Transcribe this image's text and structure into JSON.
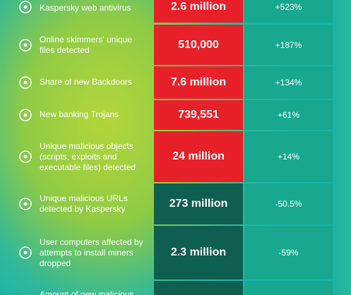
{
  "rows": [
    {
      "label": "Kaspersky web antivirus",
      "value": "2.6 million",
      "change": "+523%"
    },
    {
      "label": "Online skimmers' unique files detected",
      "value": "510,000",
      "change": "+187%"
    },
    {
      "label": "Share of new Backdoors",
      "value": "7.6 million",
      "change": "+134%"
    },
    {
      "label": "New banking Trojans",
      "value": "739,551",
      "change": "+61%"
    },
    {
      "label": "Unique malicious objects (scripts, exploits and executable files) detected",
      "value": "24 million",
      "change": "+14%"
    },
    {
      "label": "Unique malicious URLs detected by Kaspersky",
      "value": "273 million",
      "change": "-50.5%"
    },
    {
      "label": "User computers affected by attempts to install miners dropped",
      "value": "2.3 million",
      "change": "-59%"
    },
    {
      "label": "Amount of new malicious",
      "value": "",
      "change": ""
    }
  ]
}
